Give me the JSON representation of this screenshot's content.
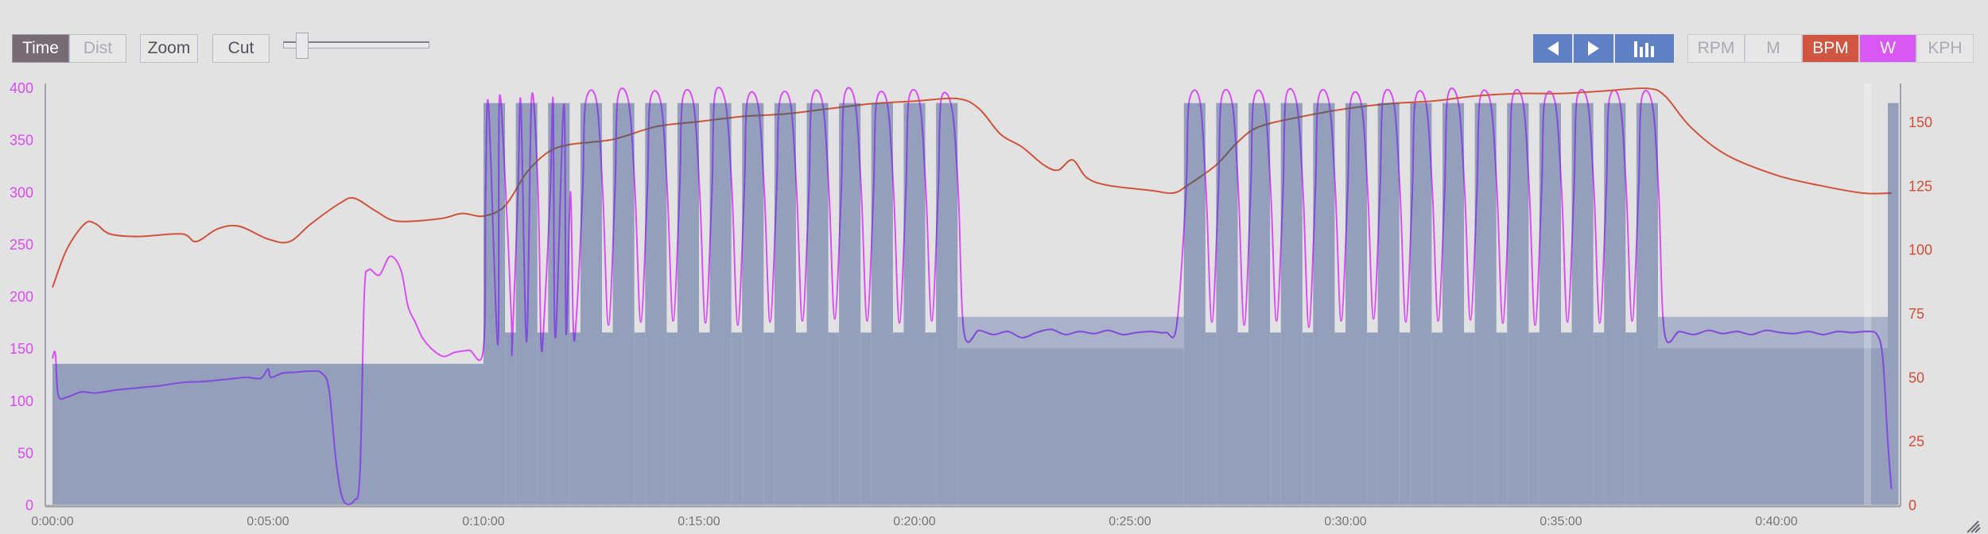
{
  "toolbar": {
    "axis_mode": [
      {
        "label": "Time",
        "active": true
      },
      {
        "label": "Dist",
        "active": false
      }
    ],
    "zoom_label": "Zoom",
    "cut_label": "Cut",
    "slider_value": 0.1,
    "nav": [
      {
        "icon": "triangle-left-icon"
      },
      {
        "icon": "triangle-right-icon"
      },
      {
        "icon": "bar-chart-icon"
      }
    ],
    "metrics": [
      {
        "label": "RPM",
        "active": false
      },
      {
        "label": "M",
        "active": false
      },
      {
        "label": "BPM",
        "active": true,
        "color": "#d05642"
      },
      {
        "label": "W",
        "active": true,
        "color": "#d957f2"
      },
      {
        "label": "KPH",
        "active": false
      }
    ]
  },
  "colors": {
    "power": "#d94ef5",
    "power_in_target": "#7e4fd8",
    "heart_rate": "#d0533c",
    "heart_rate_in_target": "#6c5f66",
    "target_fill": "#939fbb",
    "target_band": "#a9b2c8",
    "background": "#e3e2e3"
  },
  "chart_data": {
    "type": "line",
    "x_unit": "seconds",
    "xlim": [
      0,
      2570
    ],
    "x_ticks": [
      "0:00:00",
      "0:05:00",
      "0:10:00",
      "0:15:00",
      "0:20:00",
      "0:25:00",
      "0:30:00",
      "0:35:00",
      "0:40:00"
    ],
    "y_left": {
      "unit": "W",
      "ylim": [
        0,
        400
      ],
      "ticks": [
        "0",
        "50",
        "100",
        "150",
        "200",
        "250",
        "300",
        "350",
        "400"
      ]
    },
    "y_right": {
      "unit": "BPM",
      "ylim": [
        0,
        163
      ],
      "ticks": [
        "0",
        "25",
        "50",
        "75",
        "100",
        "125",
        "150"
      ]
    },
    "grid": false,
    "targets": [
      {
        "start": 0,
        "end": 600,
        "watts": 135
      },
      {
        "start": 600,
        "end": 1260,
        "on_watts": 385,
        "off_watts": 165,
        "reps": 15,
        "on_sec": 30,
        "off_sec": 15
      },
      {
        "start": 1260,
        "end": 1575,
        "low": 150,
        "high": 180
      },
      {
        "start": 1575,
        "end": 2235,
        "on_watts": 385,
        "off_watts": 165,
        "reps": 15,
        "on_sec": 30,
        "off_sec": 15
      },
      {
        "start": 2235,
        "end": 2555,
        "low": 150,
        "high": 180
      },
      {
        "start": 2555,
        "end": 2570,
        "watts": 385
      }
    ],
    "series": [
      {
        "metric": "W",
        "axis": "left",
        "points": [
          [
            0,
            140
          ],
          [
            4,
            145
          ],
          [
            8,
            105
          ],
          [
            20,
            103
          ],
          [
            40,
            108
          ],
          [
            60,
            107
          ],
          [
            90,
            110
          ],
          [
            120,
            112
          ],
          [
            150,
            114
          ],
          [
            180,
            117
          ],
          [
            210,
            118
          ],
          [
            240,
            120
          ],
          [
            270,
            122
          ],
          [
            290,
            121
          ],
          [
            300,
            130
          ],
          [
            304,
            122
          ],
          [
            320,
            126
          ],
          [
            340,
            127
          ],
          [
            360,
            128
          ],
          [
            375,
            126
          ],
          [
            385,
            110
          ],
          [
            395,
            40
          ],
          [
            405,
            4
          ],
          [
            420,
            4
          ],
          [
            428,
            30
          ],
          [
            434,
            200
          ],
          [
            440,
            225
          ],
          [
            455,
            220
          ],
          [
            470,
            238
          ],
          [
            485,
            225
          ],
          [
            495,
            190
          ],
          [
            505,
            175
          ],
          [
            515,
            160
          ],
          [
            530,
            148
          ],
          [
            545,
            142
          ],
          [
            560,
            146
          ],
          [
            580,
            148
          ],
          [
            600,
            150
          ],
          [
            620,
            153
          ],
          [
            640,
            152
          ],
          [
            660,
            156
          ],
          [
            680,
            158
          ],
          [
            700,
            160
          ],
          [
            715,
            164
          ],
          [
            725,
            170
          ],
          [
            603,
            300
          ],
          [
            607,
            383
          ],
          [
            622,
            388
          ],
          [
            631,
            300
          ],
          [
            639,
            175
          ],
          [
            648,
            300
          ],
          [
            652,
            385
          ],
          [
            667,
            390
          ],
          [
            676,
            300
          ],
          [
            684,
            172
          ],
          [
            693,
            300
          ],
          [
            697,
            386
          ],
          [
            712,
            384
          ],
          [
            721,
            300
          ],
          [
            729,
            176
          ],
          [
            738,
            300
          ],
          [
            742,
            385
          ],
          [
            757,
            388
          ],
          [
            766,
            300
          ],
          [
            774,
            172
          ],
          [
            783,
            300
          ],
          [
            787,
            390
          ],
          [
            802,
            386
          ],
          [
            811,
            300
          ],
          [
            819,
            175
          ],
          [
            828,
            300
          ],
          [
            832,
            387
          ],
          [
            847,
            385
          ],
          [
            856,
            300
          ],
          [
            864,
            176
          ],
          [
            873,
            300
          ],
          [
            877,
            388
          ],
          [
            892,
            386
          ],
          [
            901,
            300
          ],
          [
            909,
            174
          ],
          [
            918,
            300
          ],
          [
            922,
            392
          ],
          [
            937,
            385
          ],
          [
            946,
            300
          ],
          [
            954,
            172
          ],
          [
            963,
            300
          ],
          [
            967,
            386
          ],
          [
            982,
            384
          ],
          [
            991,
            300
          ],
          [
            999,
            175
          ],
          [
            1008,
            300
          ],
          [
            1012,
            385
          ],
          [
            1027,
            386
          ],
          [
            1036,
            300
          ],
          [
            1044,
            176
          ],
          [
            1053,
            300
          ],
          [
            1057,
            388
          ],
          [
            1072,
            385
          ],
          [
            1081,
            300
          ],
          [
            1089,
            178
          ],
          [
            1098,
            300
          ],
          [
            1102,
            390
          ],
          [
            1117,
            387
          ],
          [
            1126,
            300
          ],
          [
            1134,
            176
          ],
          [
            1143,
            300
          ],
          [
            1147,
            386
          ],
          [
            1162,
            385
          ],
          [
            1171,
            300
          ],
          [
            1179,
            174
          ],
          [
            1188,
            300
          ],
          [
            1192,
            388
          ],
          [
            1207,
            386
          ],
          [
            1216,
            300
          ],
          [
            1224,
            176
          ],
          [
            1233,
            300
          ],
          [
            1237,
            388
          ],
          [
            1252,
            380
          ],
          [
            1261,
            300
          ],
          [
            1269,
            165
          ],
          [
            1290,
            167
          ],
          [
            1310,
            163
          ],
          [
            1330,
            166
          ],
          [
            1350,
            160
          ],
          [
            1370,
            165
          ],
          [
            1390,
            168
          ],
          [
            1410,
            163
          ],
          [
            1430,
            166
          ],
          [
            1450,
            164
          ],
          [
            1470,
            167
          ],
          [
            1490,
            163
          ],
          [
            1510,
            165
          ],
          [
            1530,
            166
          ],
          [
            1550,
            165
          ],
          [
            1565,
            172
          ],
          [
            1578,
            300
          ],
          [
            1582,
            385
          ],
          [
            1597,
            388
          ],
          [
            1606,
            300
          ],
          [
            1614,
            175
          ],
          [
            1623,
            300
          ],
          [
            1627,
            388
          ],
          [
            1642,
            386
          ],
          [
            1651,
            300
          ],
          [
            1659,
            172
          ],
          [
            1668,
            300
          ],
          [
            1672,
            387
          ],
          [
            1687,
            386
          ],
          [
            1696,
            300
          ],
          [
            1704,
            176
          ],
          [
            1713,
            300
          ],
          [
            1717,
            390
          ],
          [
            1732,
            385
          ],
          [
            1741,
            300
          ],
          [
            1749,
            170
          ],
          [
            1758,
            300
          ],
          [
            1762,
            388
          ],
          [
            1777,
            386
          ],
          [
            1786,
            300
          ],
          [
            1794,
            176
          ],
          [
            1803,
            300
          ],
          [
            1807,
            386
          ],
          [
            1822,
            384
          ],
          [
            1831,
            300
          ],
          [
            1839,
            178
          ],
          [
            1848,
            300
          ],
          [
            1852,
            388
          ],
          [
            1867,
            386
          ],
          [
            1876,
            300
          ],
          [
            1884,
            175
          ],
          [
            1893,
            300
          ],
          [
            1897,
            387
          ],
          [
            1912,
            385
          ],
          [
            1921,
            300
          ],
          [
            1929,
            176
          ],
          [
            1938,
            300
          ],
          [
            1942,
            390
          ],
          [
            1957,
            386
          ],
          [
            1966,
            300
          ],
          [
            1974,
            177
          ],
          [
            1983,
            300
          ],
          [
            1987,
            388
          ],
          [
            2002,
            385
          ],
          [
            2011,
            300
          ],
          [
            2019,
            174
          ],
          [
            2028,
            300
          ],
          [
            2032,
            388
          ],
          [
            2047,
            386
          ],
          [
            2056,
            300
          ],
          [
            2064,
            172
          ],
          [
            2073,
            300
          ],
          [
            2077,
            386
          ],
          [
            2092,
            385
          ],
          [
            2101,
            300
          ],
          [
            2109,
            175
          ],
          [
            2118,
            300
          ],
          [
            2122,
            388
          ],
          [
            2137,
            386
          ],
          [
            2146,
            300
          ],
          [
            2154,
            174
          ],
          [
            2163,
            300
          ],
          [
            2167,
            387
          ],
          [
            2182,
            386
          ],
          [
            2191,
            300
          ],
          [
            2199,
            176
          ],
          [
            2208,
            300
          ],
          [
            2212,
            388
          ],
          [
            2227,
            384
          ],
          [
            2236,
            300
          ],
          [
            2244,
            165
          ],
          [
            2265,
            166
          ],
          [
            2285,
            163
          ],
          [
            2305,
            167
          ],
          [
            2325,
            164
          ],
          [
            2345,
            166
          ],
          [
            2365,
            163
          ],
          [
            2385,
            167
          ],
          [
            2405,
            165
          ],
          [
            2425,
            164
          ],
          [
            2445,
            166
          ],
          [
            2465,
            163
          ],
          [
            2485,
            166
          ],
          [
            2505,
            165
          ],
          [
            2525,
            166
          ],
          [
            2540,
            163
          ],
          [
            2548,
            140
          ],
          [
            2555,
            60
          ],
          [
            2560,
            15
          ]
        ]
      },
      {
        "metric": "BPM",
        "axis": "right",
        "points": [
          [
            0,
            85
          ],
          [
            20,
            100
          ],
          [
            45,
            110
          ],
          [
            60,
            110
          ],
          [
            80,
            106
          ],
          [
            120,
            105
          ],
          [
            180,
            106
          ],
          [
            200,
            103
          ],
          [
            230,
            108
          ],
          [
            260,
            109
          ],
          [
            300,
            104
          ],
          [
            330,
            103
          ],
          [
            360,
            110
          ],
          [
            400,
            118
          ],
          [
            420,
            120
          ],
          [
            450,
            115
          ],
          [
            480,
            111
          ],
          [
            540,
            112
          ],
          [
            570,
            114
          ],
          [
            600,
            113
          ],
          [
            630,
            117
          ],
          [
            660,
            130
          ],
          [
            690,
            138
          ],
          [
            720,
            141
          ],
          [
            780,
            143
          ],
          [
            840,
            148
          ],
          [
            900,
            150
          ],
          [
            960,
            152
          ],
          [
            1020,
            153
          ],
          [
            1080,
            155
          ],
          [
            1140,
            157
          ],
          [
            1200,
            158
          ],
          [
            1260,
            159
          ],
          [
            1290,
            155
          ],
          [
            1320,
            145
          ],
          [
            1350,
            140
          ],
          [
            1380,
            133
          ],
          [
            1400,
            131
          ],
          [
            1420,
            135
          ],
          [
            1440,
            128
          ],
          [
            1470,
            125
          ],
          [
            1530,
            123
          ],
          [
            1560,
            122
          ],
          [
            1580,
            125
          ],
          [
            1620,
            133
          ],
          [
            1650,
            142
          ],
          [
            1680,
            148
          ],
          [
            1740,
            152
          ],
          [
            1800,
            155
          ],
          [
            1860,
            157
          ],
          [
            1920,
            158
          ],
          [
            1980,
            160
          ],
          [
            2040,
            161
          ],
          [
            2100,
            161
          ],
          [
            2160,
            162
          ],
          [
            2220,
            163
          ],
          [
            2245,
            160
          ],
          [
            2280,
            148
          ],
          [
            2330,
            137
          ],
          [
            2400,
            129
          ],
          [
            2460,
            125
          ],
          [
            2520,
            122
          ],
          [
            2560,
            122
          ]
        ]
      }
    ]
  }
}
